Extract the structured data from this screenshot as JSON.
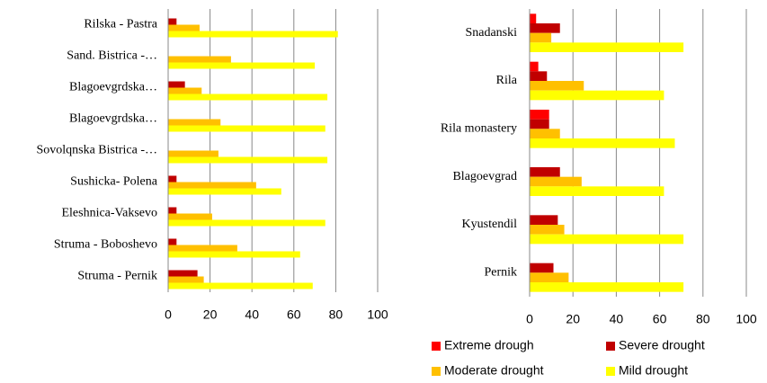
{
  "chart_data": [
    {
      "type": "bar",
      "orientation": "horizontal",
      "categories": [
        "Rilska - Pastra",
        "Sand. Bistrica -…",
        "Blagoevgrdska…",
        "Blagoevgrdska…",
        "Sovolqnska Bistrica -…",
        "Sushicka- Polena",
        "Eleshnica-Vaksevo",
        "Struma - Boboshevo",
        "Struma - Pernik"
      ],
      "series": [
        {
          "color": "#ff0000",
          "values": [
            0,
            0,
            0,
            0,
            0,
            0,
            0,
            0,
            0
          ]
        },
        {
          "color": "#c00000",
          "values": [
            4,
            0,
            8,
            0,
            0,
            4,
            4,
            4,
            14
          ]
        },
        {
          "color": "#ffc000",
          "values": [
            15,
            30,
            16,
            25,
            24,
            42,
            21,
            33,
            17
          ]
        },
        {
          "color": "#ffff00",
          "values": [
            81,
            70,
            76,
            75,
            76,
            54,
            75,
            63,
            69
          ]
        }
      ],
      "xlim": [
        0,
        100
      ],
      "xticks": [
        0,
        20,
        40,
        60,
        80,
        100
      ],
      "grid": true
    },
    {
      "type": "bar",
      "orientation": "horizontal",
      "categories": [
        "Snadanski",
        "Rila",
        "Rila monastery",
        "Blagoevgrad",
        "Kyustendil",
        "Pernik"
      ],
      "series": [
        {
          "name": "Extreme drough",
          "color": "#ff0000",
          "values": [
            3,
            4,
            9,
            0,
            0,
            0
          ]
        },
        {
          "name": "Severe drought",
          "color": "#c00000",
          "values": [
            14,
            8,
            9,
            14,
            13,
            11
          ]
        },
        {
          "name": "Moderate drought",
          "color": "#ffc000",
          "values": [
            10,
            25,
            14,
            24,
            16,
            18
          ]
        },
        {
          "name": "Mild drought",
          "color": "#ffff00",
          "values": [
            71,
            62,
            67,
            62,
            71,
            71
          ]
        }
      ],
      "xlim": [
        0,
        100
      ],
      "xticks": [
        0,
        20,
        40,
        60,
        80,
        100
      ],
      "grid": true,
      "legend": "bottom"
    }
  ]
}
